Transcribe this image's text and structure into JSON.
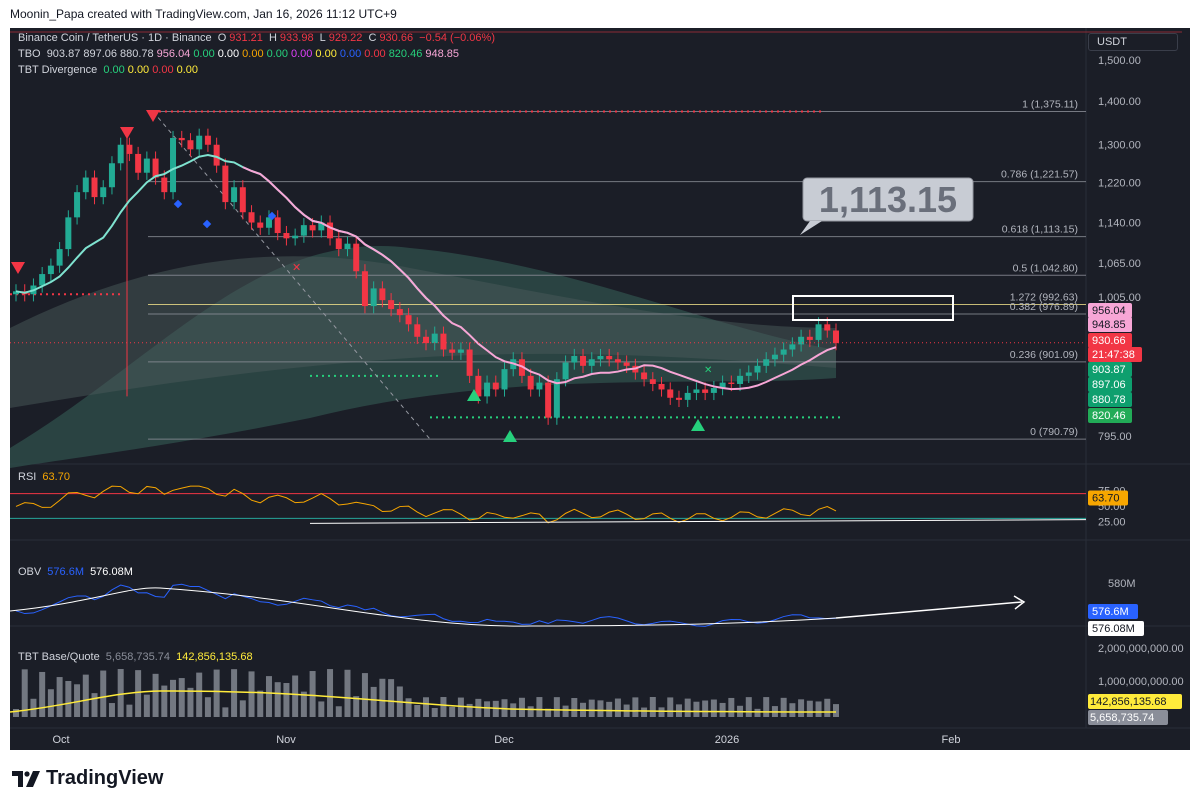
{
  "header": {
    "credit": "Moonin_Papa created with TradingView.com, Jan 16, 2026 11:12 UTC+9"
  },
  "legend": {
    "symbol": "Binance Coin / TetherUS · 1D · Binance",
    "o_label": "O",
    "o": "931.21",
    "h_label": "H",
    "h": "933.98",
    "l_label": "L",
    "l": "929.22",
    "c_label": "C",
    "c": "930.66",
    "change": "−0.54 (−0.06%)",
    "tbo_name": "TBO",
    "tbo_values": [
      {
        "v": "903.87",
        "color": "#d1d4dc"
      },
      {
        "v": "897.06",
        "color": "#d1d4dc"
      },
      {
        "v": "880.78",
        "color": "#d1d4dc"
      },
      {
        "v": "956.04",
        "color": "#f7a6d6"
      },
      {
        "v": "0.00",
        "color": "#26d07c"
      },
      {
        "v": "0.00",
        "color": "#ffffff"
      },
      {
        "v": "0.00",
        "color": "#f7a600"
      },
      {
        "v": "0.00",
        "color": "#26d07c"
      },
      {
        "v": "0.00",
        "color": "#e040fb"
      },
      {
        "v": "0.00",
        "color": "#ffeb3b"
      },
      {
        "v": "0.00",
        "color": "#2962ff"
      },
      {
        "v": "0.00",
        "color": "#f23645"
      },
      {
        "v": "820.46",
        "color": "#26d07c"
      },
      {
        "v": "948.85",
        "color": "#f7a6d6"
      }
    ],
    "div_name": "TBT Divergence",
    "div_values": [
      {
        "v": "0.00",
        "color": "#26d07c"
      },
      {
        "v": "0.00",
        "color": "#ffeb3b"
      },
      {
        "v": "0.00",
        "color": "#f23645"
      },
      {
        "v": "0.00",
        "color": "#ffeb3b"
      }
    ],
    "rsi_name": "RSI",
    "rsi_value": "63.70",
    "obv_name": "OBV",
    "obv_value1": "576.6M",
    "obv_value2": "576.08M",
    "vol_name": "TBT Base/Quote",
    "vol_value1": "5,658,735.74",
    "vol_value2": "142,856,135.68"
  },
  "currency": "USDT",
  "callout_text": "1,113.15",
  "chart_data": {
    "type": "candlestick",
    "title": "Binance Coin / TetherUS · 1D · Binance",
    "price_axis": {
      "ticks": [
        "1,500.00",
        "1,400.00",
        "1,300.00",
        "1,220.00",
        "1,140.00",
        "1,065.00",
        "1,005.00",
        "795.00"
      ],
      "tick_values": [
        1500,
        1400,
        1300,
        1220,
        1140,
        1065,
        1005,
        795
      ],
      "scale": "log"
    },
    "x_axis": {
      "labels": [
        "Oct",
        "Nov",
        "Dec",
        "2026",
        "Feb"
      ],
      "label_dates": [
        "2025-10-01",
        "2025-11-01",
        "2025-12-01",
        "2026-01-01",
        "2026-02-01"
      ]
    },
    "fib_levels": [
      {
        "label": "1 (1,375.11)",
        "value": 1375.11
      },
      {
        "label": "0.786 (1,221.57)",
        "value": 1221.57
      },
      {
        "label": "0.618 (1,113.15)",
        "value": 1113.15
      },
      {
        "label": "0.5 (1,042.80)",
        "value": 1042.8
      },
      {
        "label": "1.272 (992.63)",
        "value": 992.63,
        "color": "#f3e38a"
      },
      {
        "label": "0.382 (976.89)",
        "value": 976.89
      },
      {
        "label": "0.236 (901.09)",
        "value": 901.09
      },
      {
        "label": "0 (790.79)",
        "value": 790.79
      }
    ],
    "price_tags": [
      {
        "text": "956.04",
        "value": 956.04,
        "bg": "#f7a6d6",
        "fg": "#131722"
      },
      {
        "text": "948.85",
        "value": 948.85,
        "bg": "#f7a6d6",
        "fg": "#131722"
      },
      {
        "text": "930.66",
        "value": 930.66,
        "bg": "#f23645",
        "fg": "#ffffff"
      },
      {
        "text": "21:47:38",
        "value": 918,
        "bg": "#f23645",
        "fg": "#ffffff"
      },
      {
        "text": "903.87",
        "value": 903.87,
        "bg": "#0e9f6e",
        "fg": "#ffffff"
      },
      {
        "text": "897.06",
        "value": 897.06,
        "bg": "#0e9f6e",
        "fg": "#ffffff"
      },
      {
        "text": "880.78",
        "value": 880.78,
        "bg": "#0e9f6e",
        "fg": "#ffffff"
      },
      {
        "text": "820.46",
        "value": 820.46,
        "bg": "#22ab57",
        "fg": "#ffffff"
      }
    ],
    "closes": [
      1015,
      1010,
      1025,
      1045,
      1060,
      1090,
      1150,
      1200,
      1230,
      1190,
      1210,
      1260,
      1300,
      1280,
      1240,
      1270,
      1230,
      1200,
      1315,
      1310,
      1290,
      1320,
      1300,
      1255,
      1180,
      1210,
      1160,
      1140,
      1130,
      1150,
      1120,
      1110,
      1115,
      1135,
      1125,
      1140,
      1110,
      1090,
      1100,
      1050,
      990,
      1020,
      1000,
      985,
      975,
      960,
      940,
      930,
      945,
      920,
      915,
      920,
      880,
      850,
      870,
      860,
      890,
      905,
      880,
      860,
      870,
      820,
      875,
      900,
      910,
      895,
      905,
      910,
      905,
      900,
      895,
      885,
      875,
      868,
      860,
      848,
      845,
      855,
      860,
      855,
      862,
      870,
      868,
      880,
      885,
      895,
      905,
      912,
      920,
      928,
      940,
      935,
      960,
      950,
      930
    ],
    "rsi": {
      "name": "RSI",
      "value": 63.7,
      "ticks": [
        "75.00",
        "50.00",
        "25.00"
      ],
      "tick_values": [
        75,
        50,
        25
      ],
      "upper": 70,
      "lower": 30
    },
    "obv": {
      "name": "OBV",
      "value": "576.6M",
      "ma_value": "576.08M",
      "ticks": [
        "580M"
      ]
    },
    "volume": {
      "name": "TBT Base/Quote",
      "ticks": [
        "2,000,000,000.00",
        "1,000,000,000.00"
      ],
      "tick_values": [
        2000000000,
        1000000000
      ],
      "last": "5,658,735.74",
      "ma": "142,856,135.68"
    }
  }
}
